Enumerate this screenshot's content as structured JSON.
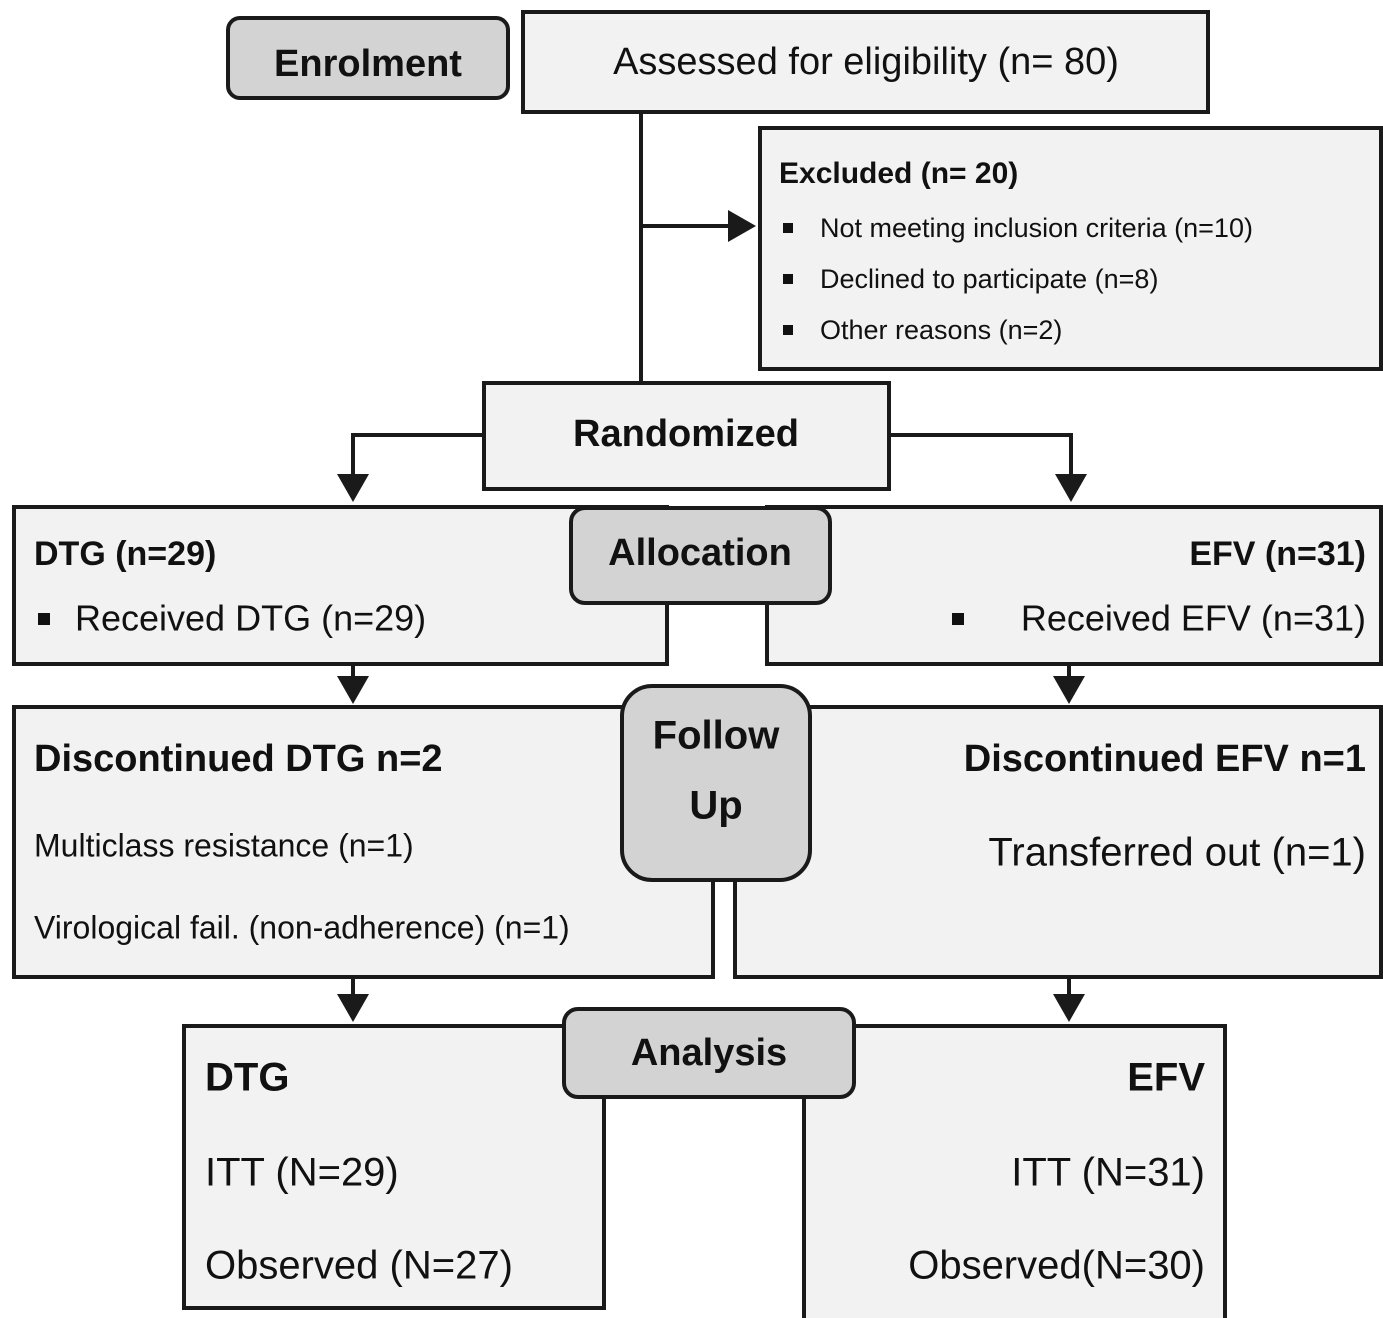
{
  "stages": {
    "enrolment": "Enrolment",
    "allocation": "Allocation",
    "follow_up": [
      "Follow",
      "Up"
    ],
    "analysis": "Analysis"
  },
  "assessed": "Assessed for eligibility (n= 80)",
  "excluded": {
    "title": "Excluded (n= 20)",
    "items": [
      "Not meeting inclusion criteria (n=10)",
      "Declined to participate (n=8)",
      "Other reasons (n=2)"
    ]
  },
  "randomized": "Randomized",
  "allocation": {
    "left": {
      "title": "DTG (n=29)",
      "items": [
        "Received DTG (n=29)"
      ]
    },
    "right": {
      "title": "EFV (n=31)",
      "items": [
        "Received EFV (n=31)"
      ]
    }
  },
  "follow_up": {
    "left": {
      "title": "Discontinued DTG n=2",
      "items": [
        "Multiclass resistance (n=1)",
        "Virological fail. (non-adherence) (n=1)"
      ]
    },
    "right": {
      "title": "Discontinued EFV n=1",
      "items": [
        "Transferred out (n=1)"
      ]
    }
  },
  "analysis": {
    "left": {
      "title": "DTG",
      "items": [
        "ITT (N=29)",
        "Observed (N=27)"
      ]
    },
    "right": {
      "title": "EFV",
      "items": [
        "ITT (N=31)",
        "Observed(N=30)"
      ]
    }
  }
}
